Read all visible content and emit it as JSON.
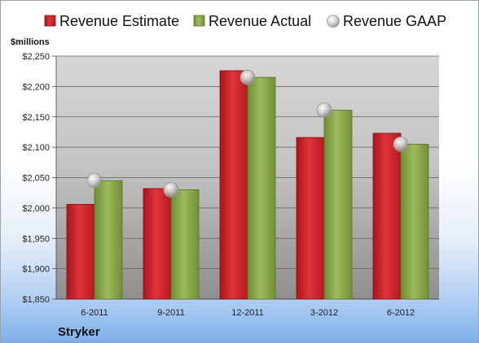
{
  "chart_data": {
    "type": "bar",
    "categories": [
      "6-2011",
      "9-2011",
      "12-2011",
      "3-2012",
      "6-2012"
    ],
    "series": [
      {
        "name": "Revenue Estimate",
        "values": [
          2006,
          2032,
          2226,
          2116,
          2123
        ],
        "color": "#d42027"
      },
      {
        "name": "Revenue Actual",
        "values": [
          2045,
          2030,
          2215,
          2161,
          2105
        ],
        "color": "#8aaa4a"
      }
    ],
    "markers": {
      "name": "Revenue GAAP",
      "values": [
        2045,
        2030,
        2215,
        2161,
        2105
      ],
      "color": "#c8c8c8"
    },
    "ylabel": "$millions",
    "ylim": [
      1850,
      2250
    ],
    "yticks": [
      1850,
      1900,
      1950,
      2000,
      2050,
      2100,
      2150,
      2200,
      2250
    ],
    "ytick_labels": [
      "$1,850",
      "$1,900",
      "$1,950",
      "$2,000",
      "$2,050",
      "$2,100",
      "$2,150",
      "$2,200",
      "$2,250"
    ],
    "grid": true,
    "legend_position": "top",
    "company": "Stryker"
  }
}
